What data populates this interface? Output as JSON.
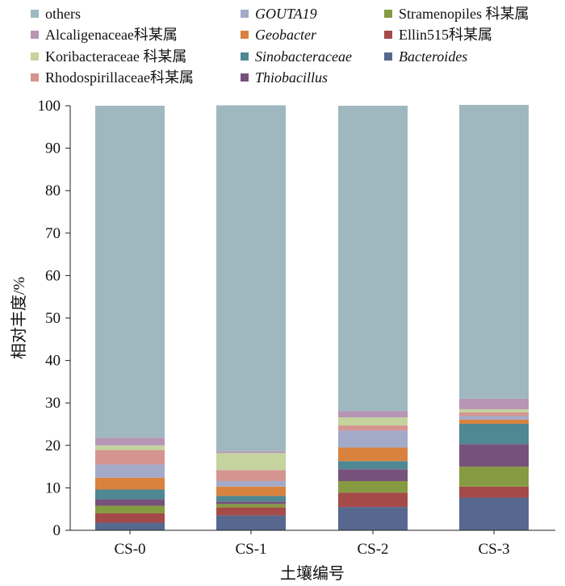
{
  "chart_data": {
    "type": "bar",
    "stacked": true,
    "categories": [
      "CS-0",
      "CS-1",
      "CS-2",
      "CS-3"
    ],
    "xlabel": "土壤编号",
    "ylabel": "相对丰度/%",
    "ylim": [
      0,
      100
    ],
    "yticks": [
      0,
      10,
      20,
      30,
      40,
      50,
      60,
      70,
      80,
      90,
      100
    ],
    "grid": false,
    "legend_position": "top",
    "series": [
      {
        "name": "Bacteroides",
        "italic": true,
        "color": "#57688f",
        "values": [
          1.8,
          3.5,
          5.5,
          7.7
        ]
      },
      {
        "name": "Ellin515科某属",
        "italic": false,
        "color": "#a44a48",
        "values": [
          2.2,
          1.9,
          3.4,
          2.6
        ]
      },
      {
        "name": "Stramenopiles 科某属",
        "italic": false,
        "color": "#869a42",
        "values": [
          1.8,
          0.8,
          2.7,
          4.7
        ]
      },
      {
        "name": "Thiobacillus",
        "italic": true,
        "color": "#76527b",
        "values": [
          1.5,
          0.6,
          2.8,
          5.3
        ]
      },
      {
        "name": "Sinobacteraceae",
        "italic": true,
        "color": "#4f8793",
        "values": [
          2.3,
          1.3,
          1.9,
          4.8
        ]
      },
      {
        "name": "Geobacter",
        "italic": true,
        "color": "#d9823f",
        "values": [
          2.8,
          2.2,
          3.2,
          1.0
        ]
      },
      {
        "name": "GOUTA19",
        "italic": true,
        "color": "#a3aac9",
        "values": [
          3.1,
          1.3,
          4.0,
          0.8
        ]
      },
      {
        "name": "Rhodospirillaceae科某属",
        "italic": false,
        "color": "#d49590",
        "values": [
          3.4,
          2.6,
          1.2,
          0.9
        ]
      },
      {
        "name": "Koribacteraceae 科某属",
        "italic": false,
        "color": "#c5d39e",
        "values": [
          1.1,
          4.0,
          1.9,
          0.7
        ]
      },
      {
        "name": "Alcaligenaceae科某属",
        "italic": false,
        "color": "#b695b5",
        "values": [
          1.8,
          0.4,
          1.5,
          2.5
        ]
      },
      {
        "name": "others",
        "italic": false,
        "color": "#9fb8c0",
        "values": [
          78.2,
          81.5,
          71.9,
          69.2
        ]
      }
    ]
  }
}
